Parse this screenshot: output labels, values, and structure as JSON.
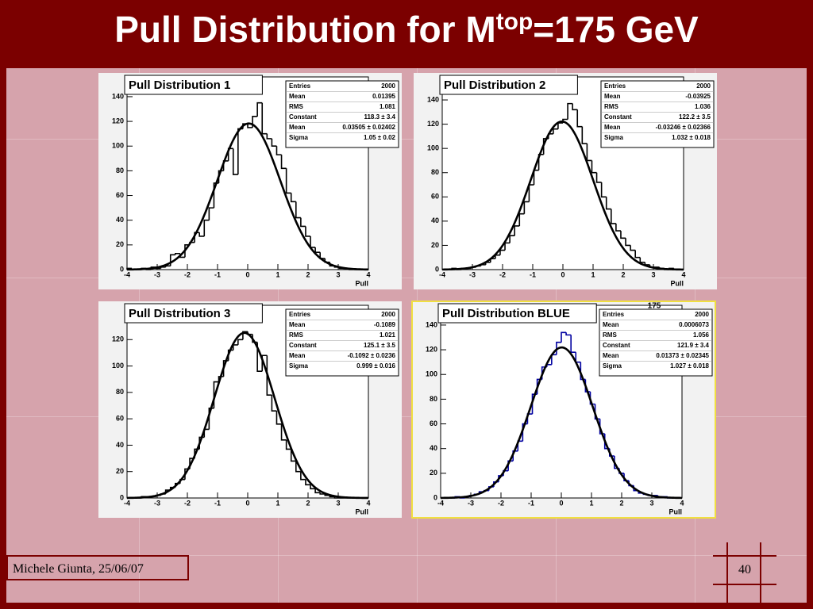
{
  "slide": {
    "title": [
      "Pull Distribution for M",
      "top",
      "=175 GeV"
    ],
    "footer": "Michele Giunta, 25/06/07",
    "page": "40"
  },
  "chart_data": [
    {
      "type": "histogram",
      "title": "Pull Distribution 1",
      "xlabel": "Pull",
      "color": "#000000",
      "bins": [
        -4,
        -3.84,
        -3.68,
        -3.52,
        -3.36,
        -3.2,
        -3.04,
        -2.88,
        -2.72,
        -2.56,
        -2.4,
        -2.24,
        -2.08,
        -1.92,
        -1.76,
        -1.6,
        -1.44,
        -1.28,
        -1.12,
        -0.96,
        -0.8,
        -0.64,
        -0.48,
        -0.32,
        -0.16,
        0,
        0.16,
        0.32,
        0.48,
        0.64,
        0.8,
        0.96,
        1.12,
        1.28,
        1.44,
        1.6,
        1.76,
        1.92,
        2.08,
        2.24,
        2.4,
        2.56,
        2.72,
        2.88,
        3.04,
        3.2,
        3.36,
        3.52,
        3.68,
        3.84,
        4
      ],
      "counts": [
        1,
        0,
        0,
        1,
        0,
        2,
        1,
        2,
        3,
        12,
        13,
        10,
        20,
        22,
        30,
        27,
        40,
        50,
        70,
        80,
        88,
        98,
        77,
        114,
        118,
        115,
        124,
        135,
        110,
        106,
        100,
        93,
        82,
        62,
        55,
        42,
        35,
        27,
        18,
        14,
        9,
        6,
        3,
        2,
        1,
        1,
        0,
        0,
        0,
        0
      ],
      "xlim": [
        -4,
        4
      ],
      "xticks": [
        -4,
        -3,
        -2,
        -1,
        0,
        1,
        2,
        3,
        4
      ],
      "ylim": [
        0,
        156
      ],
      "yticks": [
        0,
        20,
        40,
        60,
        80,
        100,
        120,
        140
      ],
      "stats": [
        {
          "label": "Entries",
          "value": 2000
        },
        {
          "label": "Mean",
          "value": 0.01395
        },
        {
          "label": "RMS",
          "value": 1.081
        },
        {
          "label": "Constant",
          "value": 118.3,
          "error": 3.4,
          "value_label": "118.3 ± 3.4"
        },
        {
          "label": "Mean",
          "value": 0.03505,
          "error": 0.02402,
          "value_label": "0.03505 ± 0.02402"
        },
        {
          "label": "Sigma",
          "value": 1.05,
          "error": 0.02,
          "value_label": "1.05 ± 0.02"
        }
      ]
    },
    {
      "type": "histogram",
      "title": "Pull Distribution 2",
      "xlabel": "Pull",
      "color": "#000000",
      "bins": [
        -4,
        -3.84,
        -3.68,
        -3.52,
        -3.36,
        -3.2,
        -3.04,
        -2.88,
        -2.72,
        -2.56,
        -2.4,
        -2.24,
        -2.08,
        -1.92,
        -1.76,
        -1.6,
        -1.44,
        -1.28,
        -1.12,
        -0.96,
        -0.8,
        -0.64,
        -0.48,
        -0.32,
        -0.16,
        0,
        0.16,
        0.32,
        0.48,
        0.64,
        0.8,
        0.96,
        1.12,
        1.28,
        1.44,
        1.6,
        1.76,
        1.92,
        2.08,
        2.24,
        2.4,
        2.56,
        2.72,
        2.88,
        3.04,
        3.2,
        3.36,
        3.52,
        3.68,
        3.84,
        4
      ],
      "counts": [
        0,
        0,
        1,
        0,
        1,
        1,
        2,
        3,
        4,
        6,
        9,
        12,
        16,
        22,
        28,
        36,
        46,
        56,
        70,
        82,
        95,
        108,
        112,
        116,
        121,
        124,
        137,
        132,
        118,
        104,
        90,
        80,
        72,
        60,
        50,
        38,
        32,
        26,
        20,
        16,
        10,
        6,
        4,
        2,
        2,
        1,
        0,
        1,
        0,
        0
      ],
      "xlim": [
        -4,
        4
      ],
      "xticks": [
        -4,
        -3,
        -2,
        -1,
        0,
        1,
        2,
        3,
        4
      ],
      "ylim": [
        0,
        159
      ],
      "yticks": [
        0,
        20,
        40,
        60,
        80,
        100,
        120,
        140
      ],
      "stats": [
        {
          "label": "Entries",
          "value": 2000
        },
        {
          "label": "Mean",
          "value": -0.03925
        },
        {
          "label": "RMS",
          "value": 1.036
        },
        {
          "label": "Constant",
          "value": 122.2,
          "error": 3.5,
          "value_label": "122.2 ± 3.5"
        },
        {
          "label": "Mean",
          "value": -0.03246,
          "error": 0.02366,
          "value_label": "-0.03246 ± 0.02366"
        },
        {
          "label": "Sigma",
          "value": 1.032,
          "error": 0.018,
          "value_label": "1.032 ± 0.018"
        }
      ]
    },
    {
      "type": "histogram",
      "title": "Pull Distribution 3",
      "xlabel": "Pull",
      "color": "#000000",
      "bins": [
        -4,
        -3.84,
        -3.68,
        -3.52,
        -3.36,
        -3.2,
        -3.04,
        -2.88,
        -2.72,
        -2.56,
        -2.4,
        -2.24,
        -2.08,
        -1.92,
        -1.76,
        -1.6,
        -1.44,
        -1.28,
        -1.12,
        -0.96,
        -0.8,
        -0.64,
        -0.48,
        -0.32,
        -0.16,
        0,
        0.16,
        0.32,
        0.48,
        0.64,
        0.8,
        0.96,
        1.12,
        1.28,
        1.44,
        1.6,
        1.76,
        1.92,
        2.08,
        2.24,
        2.4,
        2.56,
        2.72,
        2.88,
        3.04,
        3.2,
        3.36,
        3.52,
        3.68,
        3.84,
        4
      ],
      "counts": [
        0,
        0,
        0,
        1,
        1,
        1,
        2,
        3,
        6,
        8,
        11,
        14,
        22,
        30,
        37,
        46,
        52,
        68,
        88,
        92,
        104,
        112,
        116,
        120,
        126,
        124,
        118,
        96,
        108,
        78,
        66,
        56,
        44,
        37,
        28,
        20,
        14,
        10,
        7,
        4,
        3,
        2,
        1,
        0,
        0,
        0,
        0,
        0,
        0,
        0
      ],
      "xlim": [
        -4,
        4
      ],
      "xticks": [
        -4,
        -3,
        -2,
        -1,
        0,
        1,
        2,
        3,
        4
      ],
      "ylim": [
        0,
        146
      ],
      "yticks": [
        0,
        20,
        40,
        60,
        80,
        100,
        120
      ],
      "stats": [
        {
          "label": "Entries",
          "value": 2000
        },
        {
          "label": "Mean",
          "value": -0.1089
        },
        {
          "label": "RMS",
          "value": 1.021
        },
        {
          "label": "Constant",
          "value": 125.1,
          "error": 3.5,
          "value_label": "125.1 ± 3.5"
        },
        {
          "label": "Mean",
          "value": -0.1092,
          "error": 0.0236,
          "value_label": "-0.1092 ± 0.0236"
        },
        {
          "label": "Sigma",
          "value": 0.999,
          "error": 0.016,
          "value_label": "0.999 ± 0.016"
        }
      ]
    },
    {
      "type": "histogram",
      "title": "Pull Distribution BLUE",
      "annotation": "175",
      "xlabel": "Pull",
      "color": "#0000a0",
      "bins": [
        -4,
        -3.84,
        -3.68,
        -3.52,
        -3.36,
        -3.2,
        -3.04,
        -2.88,
        -2.72,
        -2.56,
        -2.4,
        -2.24,
        -2.08,
        -1.92,
        -1.76,
        -1.6,
        -1.44,
        -1.28,
        -1.12,
        -0.96,
        -0.8,
        -0.64,
        -0.48,
        -0.32,
        -0.16,
        0,
        0.16,
        0.32,
        0.48,
        0.64,
        0.8,
        0.96,
        1.12,
        1.28,
        1.44,
        1.6,
        1.76,
        1.92,
        2.08,
        2.24,
        2.4,
        2.56,
        2.72,
        2.88,
        3.04,
        3.2,
        3.36,
        3.52,
        3.68,
        3.84,
        4
      ],
      "counts": [
        0,
        0,
        0,
        1,
        0,
        1,
        2,
        3,
        5,
        6,
        9,
        13,
        18,
        22,
        30,
        38,
        46,
        60,
        68,
        84,
        96,
        106,
        108,
        116,
        126,
        134,
        132,
        118,
        110,
        96,
        86,
        76,
        64,
        52,
        40,
        34,
        24,
        20,
        14,
        10,
        6,
        4,
        3,
        2,
        2,
        1,
        1,
        0,
        0,
        0
      ],
      "xlim": [
        -4,
        4
      ],
      "xticks": [
        -4,
        -3,
        -2,
        -1,
        0,
        1,
        2,
        3,
        4
      ],
      "ylim": [
        0,
        156
      ],
      "yticks": [
        0,
        20,
        40,
        60,
        80,
        100,
        120,
        140
      ],
      "stats": [
        {
          "label": "Entries",
          "value": 2000
        },
        {
          "label": "Mean",
          "value": 0.0006073
        },
        {
          "label": "RMS",
          "value": 1.056
        },
        {
          "label": "Constant",
          "value": 121.9,
          "error": 3.4,
          "value_label": "121.9 ± 3.4"
        },
        {
          "label": "Mean",
          "value": 0.01373,
          "error": 0.02345,
          "value_label": "0.01373 ± 0.02345"
        },
        {
          "label": "Sigma",
          "value": 1.027,
          "error": 0.018,
          "value_label": "1.027 ± 0.018"
        }
      ]
    }
  ]
}
